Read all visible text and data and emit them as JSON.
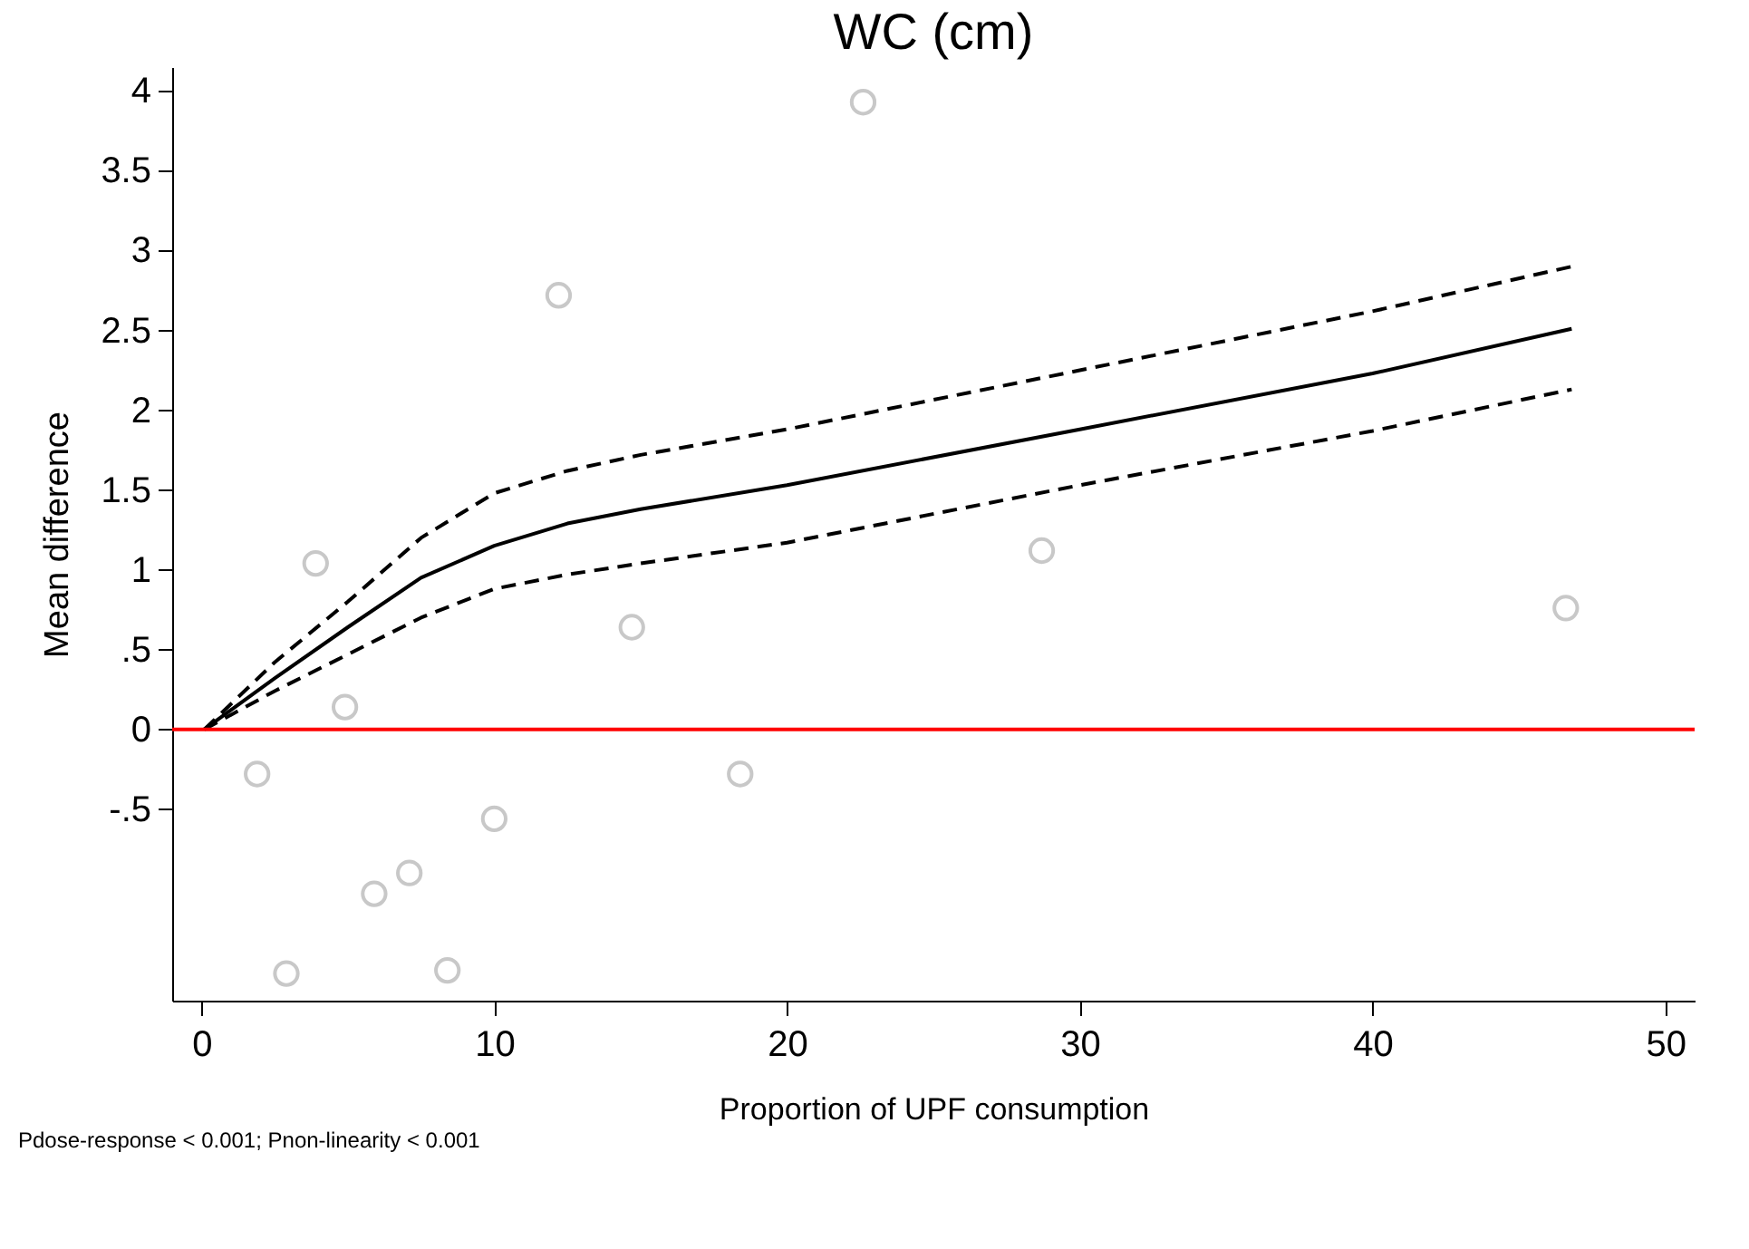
{
  "chart_data": {
    "type": "scatter",
    "title": "WC (cm)",
    "xlabel": "Proportion of UPF consumption",
    "ylabel": "Mean difference",
    "xlim": [
      -1,
      51
    ],
    "xticks": [
      0,
      10,
      20,
      30,
      40,
      50
    ],
    "ylim": [
      -1.7,
      4.15
    ],
    "yticks": [
      {
        "value": -0.5,
        "label": "-.5"
      },
      0,
      {
        "value": 0.5,
        "label": ".5"
      },
      1,
      1.5,
      2,
      2.5,
      3,
      3.5,
      4
    ],
    "grid": false,
    "series": [
      {
        "color": "#c8c8c8",
        "marker": "circle",
        "x": [
          1.9,
          2.9,
          3.9,
          4.9,
          5.9,
          7.1,
          8.4,
          10.0,
          12.2,
          14.7,
          18.4,
          22.6,
          28.7,
          46.6
        ],
        "values": [
          -0.28,
          -1.53,
          1.04,
          0.14,
          -1.03,
          -0.9,
          -1.51,
          -0.56,
          2.72,
          0.64,
          -0.28,
          3.93,
          1.12,
          0.76
        ]
      },
      {
        "type": "line",
        "color": "#000000",
        "line_style": "solid",
        "marker": "none",
        "x": [
          0.1,
          2.5,
          5,
          7.5,
          10,
          12.5,
          15,
          20,
          30,
          40,
          46.8
        ],
        "values": [
          0,
          0.32,
          0.64,
          0.95,
          1.15,
          1.29,
          1.38,
          1.53,
          1.88,
          2.23,
          2.51
        ]
      },
      {
        "type": "line",
        "color": "#000000",
        "line_style": "dashed",
        "marker": "none",
        "x": [
          0.1,
          2.5,
          5,
          7.5,
          10,
          12.5,
          15,
          20,
          30,
          40,
          46.8
        ],
        "values": [
          0,
          0.42,
          0.8,
          1.2,
          1.48,
          1.62,
          1.72,
          1.88,
          2.25,
          2.62,
          2.9
        ]
      },
      {
        "type": "line",
        "color": "#000000",
        "line_style": "dashed",
        "marker": "none",
        "x": [
          0.1,
          2.5,
          5,
          7.5,
          10,
          12.5,
          15,
          20,
          30,
          40,
          46.8
        ],
        "values": [
          0,
          0.24,
          0.47,
          0.7,
          0.88,
          0.97,
          1.04,
          1.17,
          1.53,
          1.87,
          2.13
        ]
      }
    ],
    "ref_lines": [
      {
        "axis": "y",
        "value": 0,
        "color": "#ff0000",
        "line_style": "solid"
      }
    ],
    "annotations": [
      "Pdose-response < 0.001; Pnon-linearity < 0.001"
    ]
  }
}
